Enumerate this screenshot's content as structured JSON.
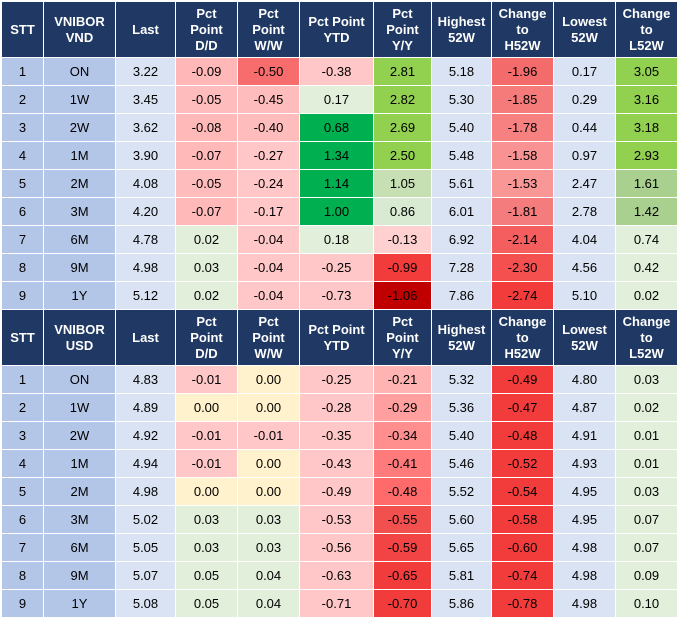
{
  "tables": [
    {
      "headers": [
        "STT",
        "VNIBOR\nVND",
        "Last",
        "Pct\nPoint\nD/D",
        "Pct\nPoint\nW/W",
        "Pct Point\nYTD",
        "Pct\nPoint\nY/Y",
        "Highest\n52W",
        "Change\nto\nH52W",
        "Lowest\n52W",
        "Change\nto\nL52W"
      ],
      "rows": [
        [
          "1",
          "ON",
          "3.22",
          "-0.09",
          "-0.50",
          "-0.38",
          "2.81",
          "5.18",
          "-1.96",
          "0.17",
          "3.05"
        ],
        [
          "2",
          "1W",
          "3.45",
          "-0.05",
          "-0.45",
          "0.17",
          "2.82",
          "5.30",
          "-1.85",
          "0.29",
          "3.16"
        ],
        [
          "3",
          "2W",
          "3.62",
          "-0.08",
          "-0.40",
          "0.68",
          "2.69",
          "5.40",
          "-1.78",
          "0.44",
          "3.18"
        ],
        [
          "4",
          "1M",
          "3.90",
          "-0.07",
          "-0.27",
          "1.34",
          "2.50",
          "5.48",
          "-1.58",
          "0.97",
          "2.93"
        ],
        [
          "5",
          "2M",
          "4.08",
          "-0.05",
          "-0.24",
          "1.14",
          "1.05",
          "5.61",
          "-1.53",
          "2.47",
          "1.61"
        ],
        [
          "6",
          "3M",
          "4.20",
          "-0.07",
          "-0.17",
          "1.00",
          "0.86",
          "6.01",
          "-1.81",
          "2.78",
          "1.42"
        ],
        [
          "7",
          "6M",
          "4.78",
          "0.02",
          "-0.04",
          "0.18",
          "-0.13",
          "6.92",
          "-2.14",
          "4.04",
          "0.74"
        ],
        [
          "8",
          "9M",
          "4.98",
          "0.03",
          "-0.04",
          "-0.25",
          "-0.99",
          "7.28",
          "-2.30",
          "4.56",
          "0.42"
        ],
        [
          "9",
          "1Y",
          "5.12",
          "0.02",
          "-0.04",
          "-0.73",
          "-1.06",
          "7.86",
          "-2.74",
          "5.10",
          "0.02"
        ]
      ],
      "colors": [
        [
          "#b4c6e7",
          "#b4c6e7",
          "#dae3f3",
          "#ffb7b7",
          "#f76d6d",
          "#ffc7c7",
          "#92d050",
          "#dae3f3",
          "#f46b6b",
          "#dae3f3",
          "#92d050"
        ],
        [
          "#b4c6e7",
          "#b4c6e7",
          "#dae3f3",
          "#ffbcbc",
          "#ffbcbc",
          "#e2efda",
          "#92d050",
          "#dae3f3",
          "#f57a7a",
          "#dae3f3",
          "#92d050"
        ],
        [
          "#b4c6e7",
          "#b4c6e7",
          "#dae3f3",
          "#ffb9b9",
          "#ffbcbc",
          "#00b050",
          "#92d050",
          "#dae3f3",
          "#f78080",
          "#dae3f3",
          "#92d050"
        ],
        [
          "#b4c6e7",
          "#b4c6e7",
          "#dae3f3",
          "#ffb9b9",
          "#ffc7c7",
          "#00b050",
          "#92d050",
          "#dae3f3",
          "#f99393",
          "#dae3f3",
          "#92d050"
        ],
        [
          "#b4c6e7",
          "#b4c6e7",
          "#dae3f3",
          "#ffbcbc",
          "#ffc7c7",
          "#00b050",
          "#c6e0b4",
          "#dae3f3",
          "#f99797",
          "#dae3f3",
          "#a9d08e"
        ],
        [
          "#b4c6e7",
          "#b4c6e7",
          "#dae3f3",
          "#ffb9b9",
          "#ffc7c7",
          "#00b050",
          "#d9ead3",
          "#dae3f3",
          "#f57c7c",
          "#dae3f3",
          "#a9d08e"
        ],
        [
          "#b4c6e7",
          "#b4c6e7",
          "#dae3f3",
          "#e2efda",
          "#ffc7c7",
          "#e2efda",
          "#ffd0d0",
          "#dae3f3",
          "#f45e5e",
          "#dae3f3",
          "#e2efda"
        ],
        [
          "#b4c6e7",
          "#b4c6e7",
          "#dae3f3",
          "#e2efda",
          "#ffc7c7",
          "#ffc7c7",
          "#f23b3b",
          "#dae3f3",
          "#f45050",
          "#dae3f3",
          "#e2efda"
        ],
        [
          "#b4c6e7",
          "#b4c6e7",
          "#dae3f3",
          "#e2efda",
          "#ffc7c7",
          "#ffc7c7",
          "#c00000",
          "#dae3f3",
          "#f23c3c",
          "#dae3f3",
          "#e2efda"
        ]
      ]
    },
    {
      "headers": [
        "STT",
        "VNIBOR\nUSD",
        "Last",
        "Pct\nPoint\nD/D",
        "Pct\nPoint\nW/W",
        "Pct Point\nYTD",
        "Pct\nPoint\nY/Y",
        "Highest\n52W",
        "Change\nto\nH52W",
        "Lowest\n52W",
        "Change\nto\nL52W"
      ],
      "rows": [
        [
          "1",
          "ON",
          "4.83",
          "-0.01",
          "0.00",
          "-0.25",
          "-0.21",
          "5.32",
          "-0.49",
          "4.80",
          "0.03"
        ],
        [
          "2",
          "1W",
          "4.89",
          "0.00",
          "0.00",
          "-0.28",
          "-0.29",
          "5.36",
          "-0.47",
          "4.87",
          "0.02"
        ],
        [
          "3",
          "2W",
          "4.92",
          "-0.01",
          "-0.01",
          "-0.35",
          "-0.34",
          "5.40",
          "-0.48",
          "4.91",
          "0.01"
        ],
        [
          "4",
          "1M",
          "4.94",
          "-0.01",
          "0.00",
          "-0.43",
          "-0.41",
          "5.46",
          "-0.52",
          "4.93",
          "0.01"
        ],
        [
          "5",
          "2M",
          "4.98",
          "0.00",
          "0.00",
          "-0.49",
          "-0.48",
          "5.52",
          "-0.54",
          "4.95",
          "0.03"
        ],
        [
          "6",
          "3M",
          "5.02",
          "0.03",
          "0.03",
          "-0.53",
          "-0.55",
          "5.60",
          "-0.58",
          "4.95",
          "0.07"
        ],
        [
          "7",
          "6M",
          "5.05",
          "0.03",
          "0.03",
          "-0.56",
          "-0.59",
          "5.65",
          "-0.60",
          "4.98",
          "0.07"
        ],
        [
          "8",
          "9M",
          "5.07",
          "0.05",
          "0.04",
          "-0.63",
          "-0.65",
          "5.81",
          "-0.74",
          "4.98",
          "0.09"
        ],
        [
          "9",
          "1Y",
          "5.08",
          "0.05",
          "0.04",
          "-0.71",
          "-0.70",
          "5.86",
          "-0.78",
          "4.98",
          "0.10"
        ]
      ],
      "colors": [
        [
          "#b4c6e7",
          "#b4c6e7",
          "#dae3f3",
          "#ffc7c7",
          "#fff2cc",
          "#ffc7c7",
          "#ffb3b3",
          "#dae3f3",
          "#f23c3c",
          "#dae3f3",
          "#e2efda"
        ],
        [
          "#b4c6e7",
          "#b4c6e7",
          "#dae3f3",
          "#fff2cc",
          "#fff2cc",
          "#ffc7c7",
          "#ff9f9f",
          "#dae3f3",
          "#f23c3c",
          "#dae3f3",
          "#e2efda"
        ],
        [
          "#b4c6e7",
          "#b4c6e7",
          "#dae3f3",
          "#ffc7c7",
          "#ffc7c7",
          "#ffc7c7",
          "#ff8f8f",
          "#dae3f3",
          "#f23c3c",
          "#dae3f3",
          "#e2efda"
        ],
        [
          "#b4c6e7",
          "#b4c6e7",
          "#dae3f3",
          "#ffc7c7",
          "#fff2cc",
          "#ffc7c7",
          "#ff7a7a",
          "#dae3f3",
          "#f23c3c",
          "#dae3f3",
          "#e2efda"
        ],
        [
          "#b4c6e7",
          "#b4c6e7",
          "#dae3f3",
          "#fff2cc",
          "#fff2cc",
          "#ffc7c7",
          "#ff6b6b",
          "#dae3f3",
          "#f23c3c",
          "#dae3f3",
          "#e2efda"
        ],
        [
          "#b4c6e7",
          "#b4c6e7",
          "#dae3f3",
          "#e2efda",
          "#e2efda",
          "#ffc7c7",
          "#f24f4f",
          "#dae3f3",
          "#f23c3c",
          "#dae3f3",
          "#e2efda"
        ],
        [
          "#b4c6e7",
          "#b4c6e7",
          "#dae3f3",
          "#e2efda",
          "#e2efda",
          "#ffc7c7",
          "#f24444",
          "#dae3f3",
          "#f23c3c",
          "#dae3f3",
          "#e2efda"
        ],
        [
          "#b4c6e7",
          "#b4c6e7",
          "#dae3f3",
          "#e2efda",
          "#e2efda",
          "#ffc7c7",
          "#f23c3c",
          "#dae3f3",
          "#f23c3c",
          "#dae3f3",
          "#e2efda"
        ],
        [
          "#b4c6e7",
          "#b4c6e7",
          "#dae3f3",
          "#e2efda",
          "#e2efda",
          "#ffc7c7",
          "#f23c3c",
          "#dae3f3",
          "#f23c3c",
          "#dae3f3",
          "#e2efda"
        ]
      ]
    }
  ]
}
